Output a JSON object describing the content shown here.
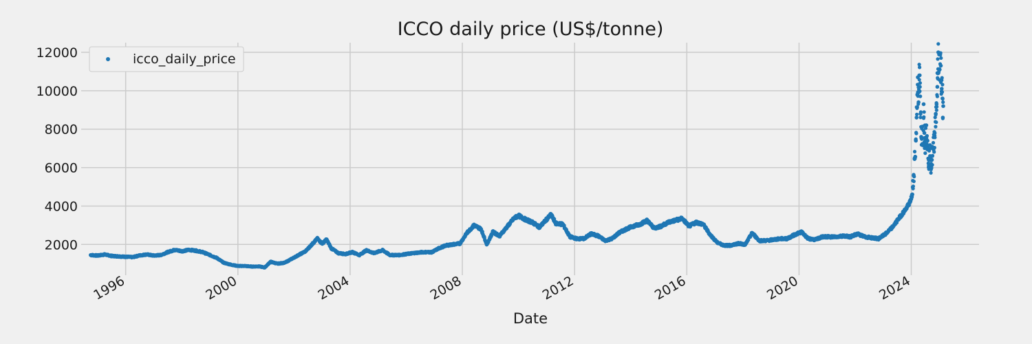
{
  "chart_data": {
    "type": "scatter",
    "title": "ICCO daily price (US$/tonne)",
    "xlabel": "Date",
    "ylabel": "",
    "x_type": "date",
    "xlim": [
      "1994-06-01",
      "2026-06-01"
    ],
    "ylim": [
      400,
      12500
    ],
    "x_ticks": [
      "1996",
      "2000",
      "2004",
      "2008",
      "2012",
      "2016",
      "2020",
      "2024"
    ],
    "y_ticks": [
      2000,
      4000,
      6000,
      8000,
      10000,
      12000
    ],
    "grid": true,
    "legend": {
      "position": "top-left",
      "entries": [
        "icco_daily_price"
      ]
    },
    "colors": {
      "series": "#1f77b4",
      "background": "#f0f0f0",
      "grid": "#cbcbcb"
    },
    "series": [
      {
        "name": "icco_daily_price",
        "points": [
          [
            "1994-10-03",
            1450
          ],
          [
            "1995-01-02",
            1420
          ],
          [
            "1995-04-03",
            1480
          ],
          [
            "1995-07-03",
            1400
          ],
          [
            "1995-10-02",
            1380
          ],
          [
            "1996-01-01",
            1360
          ],
          [
            "1996-04-01",
            1340
          ],
          [
            "1996-07-01",
            1430
          ],
          [
            "1996-10-01",
            1480
          ],
          [
            "1997-01-01",
            1420
          ],
          [
            "1997-04-01",
            1450
          ],
          [
            "1997-07-01",
            1600
          ],
          [
            "1997-10-01",
            1720
          ],
          [
            "1998-01-01",
            1650
          ],
          [
            "1998-04-01",
            1720
          ],
          [
            "1998-07-01",
            1680
          ],
          [
            "1998-10-01",
            1600
          ],
          [
            "1999-01-01",
            1450
          ],
          [
            "1999-04-01",
            1300
          ],
          [
            "1999-07-01",
            1050
          ],
          [
            "1999-10-01",
            950
          ],
          [
            "2000-01-01",
            880
          ],
          [
            "2000-04-01",
            880
          ],
          [
            "2000-07-01",
            850
          ],
          [
            "2000-10-01",
            860
          ],
          [
            "2000-12-15",
            800
          ],
          [
            "2001-03-01",
            1100
          ],
          [
            "2001-06-01",
            1000
          ],
          [
            "2001-09-01",
            1050
          ],
          [
            "2001-12-01",
            1250
          ],
          [
            "2002-03-01",
            1450
          ],
          [
            "2002-06-01",
            1650
          ],
          [
            "2002-09-01",
            2050
          ],
          [
            "2002-11-01",
            2300
          ],
          [
            "2003-01-01",
            2050
          ],
          [
            "2003-03-01",
            2250
          ],
          [
            "2003-05-01",
            1800
          ],
          [
            "2003-08-01",
            1550
          ],
          [
            "2003-11-01",
            1500
          ],
          [
            "2004-02-01",
            1600
          ],
          [
            "2004-05-01",
            1450
          ],
          [
            "2004-08-01",
            1700
          ],
          [
            "2004-11-01",
            1550
          ],
          [
            "2005-03-01",
            1700
          ],
          [
            "2005-06-01",
            1450
          ],
          [
            "2005-10-01",
            1450
          ],
          [
            "2006-01-01",
            1500
          ],
          [
            "2006-04-01",
            1550
          ],
          [
            "2006-08-01",
            1600
          ],
          [
            "2006-12-01",
            1600
          ],
          [
            "2007-03-01",
            1800
          ],
          [
            "2007-06-01",
            1950
          ],
          [
            "2007-09-01",
            2000
          ],
          [
            "2007-12-01",
            2050
          ],
          [
            "2008-03-01",
            2600
          ],
          [
            "2008-06-01",
            3000
          ],
          [
            "2008-09-01",
            2800
          ],
          [
            "2008-11-15",
            2000
          ],
          [
            "2009-02-01",
            2650
          ],
          [
            "2009-05-01",
            2450
          ],
          [
            "2009-08-01",
            2900
          ],
          [
            "2009-11-01",
            3350
          ],
          [
            "2010-01-01",
            3500
          ],
          [
            "2010-04-01",
            3300
          ],
          [
            "2010-07-01",
            3150
          ],
          [
            "2010-10-01",
            2900
          ],
          [
            "2011-01-01",
            3300
          ],
          [
            "2011-03-01",
            3550
          ],
          [
            "2011-05-01",
            3100
          ],
          [
            "2011-08-01",
            3050
          ],
          [
            "2011-11-01",
            2400
          ],
          [
            "2012-02-01",
            2300
          ],
          [
            "2012-05-01",
            2300
          ],
          [
            "2012-08-01",
            2550
          ],
          [
            "2012-11-01",
            2450
          ],
          [
            "2013-02-01",
            2200
          ],
          [
            "2013-05-01",
            2300
          ],
          [
            "2013-08-01",
            2600
          ],
          [
            "2013-11-01",
            2800
          ],
          [
            "2014-02-01",
            2950
          ],
          [
            "2014-05-01",
            3050
          ],
          [
            "2014-08-01",
            3250
          ],
          [
            "2014-11-01",
            2850
          ],
          [
            "2015-02-01",
            2950
          ],
          [
            "2015-05-01",
            3150
          ],
          [
            "2015-08-01",
            3250
          ],
          [
            "2015-11-01",
            3350
          ],
          [
            "2016-02-01",
            2950
          ],
          [
            "2016-05-01",
            3150
          ],
          [
            "2016-08-01",
            3050
          ],
          [
            "2016-11-01",
            2500
          ],
          [
            "2017-02-01",
            2100
          ],
          [
            "2017-05-01",
            1950
          ],
          [
            "2017-08-01",
            1950
          ],
          [
            "2017-11-01",
            2050
          ],
          [
            "2018-02-01",
            2000
          ],
          [
            "2018-05-01",
            2600
          ],
          [
            "2018-08-01",
            2200
          ],
          [
            "2018-11-01",
            2200
          ],
          [
            "2019-02-01",
            2250
          ],
          [
            "2019-05-01",
            2300
          ],
          [
            "2019-08-01",
            2300
          ],
          [
            "2019-11-01",
            2500
          ],
          [
            "2020-02-01",
            2650
          ],
          [
            "2020-05-01",
            2300
          ],
          [
            "2020-08-01",
            2250
          ],
          [
            "2020-11-01",
            2400
          ],
          [
            "2021-02-01",
            2400
          ],
          [
            "2021-05-01",
            2400
          ],
          [
            "2021-08-01",
            2450
          ],
          [
            "2021-11-01",
            2400
          ],
          [
            "2022-02-01",
            2550
          ],
          [
            "2022-05-01",
            2400
          ],
          [
            "2022-08-01",
            2350
          ],
          [
            "2022-11-01",
            2300
          ],
          [
            "2023-02-01",
            2550
          ],
          [
            "2023-05-01",
            2900
          ],
          [
            "2023-08-01",
            3400
          ],
          [
            "2023-11-01",
            3900
          ],
          [
            "2023-12-15",
            4200
          ],
          [
            "2024-01-15",
            4600
          ],
          [
            "2024-02-01",
            5600
          ],
          [
            "2024-02-15",
            6500
          ],
          [
            "2024-03-01",
            7400
          ],
          [
            "2024-03-10",
            8600
          ],
          [
            "2024-03-20",
            9800
          ],
          [
            "2024-03-26",
            10700
          ],
          [
            "2024-04-05",
            9400
          ],
          [
            "2024-04-15",
            10800
          ],
          [
            "2024-04-22",
            10200
          ],
          [
            "2024-05-01",
            8800
          ],
          [
            "2024-05-10",
            7600
          ],
          [
            "2024-05-20",
            8100
          ],
          [
            "2024-06-01",
            7200
          ],
          [
            "2024-06-10",
            9300
          ],
          [
            "2024-06-20",
            7800
          ],
          [
            "2024-07-01",
            7400
          ],
          [
            "2024-07-15",
            8200
          ],
          [
            "2024-08-01",
            7000
          ],
          [
            "2024-08-15",
            6400
          ],
          [
            "2024-09-01",
            6600
          ],
          [
            "2024-09-15",
            6200
          ],
          [
            "2024-10-01",
            6600
          ],
          [
            "2024-10-15",
            7000
          ],
          [
            "2024-11-01",
            7800
          ],
          [
            "2024-11-15",
            8800
          ],
          [
            "2024-11-25",
            9300
          ],
          [
            "2024-12-05",
            10200
          ],
          [
            "2024-12-12",
            10900
          ],
          [
            "2024-12-18",
            12000
          ],
          [
            "2025-01-05",
            11100
          ],
          [
            "2025-01-20",
            11300
          ],
          [
            "2025-02-01",
            10100
          ],
          [
            "2025-02-10",
            9600
          ],
          [
            "2025-02-15",
            8600
          ],
          [
            "2025-02-20",
            9200
          ]
        ]
      }
    ]
  }
}
